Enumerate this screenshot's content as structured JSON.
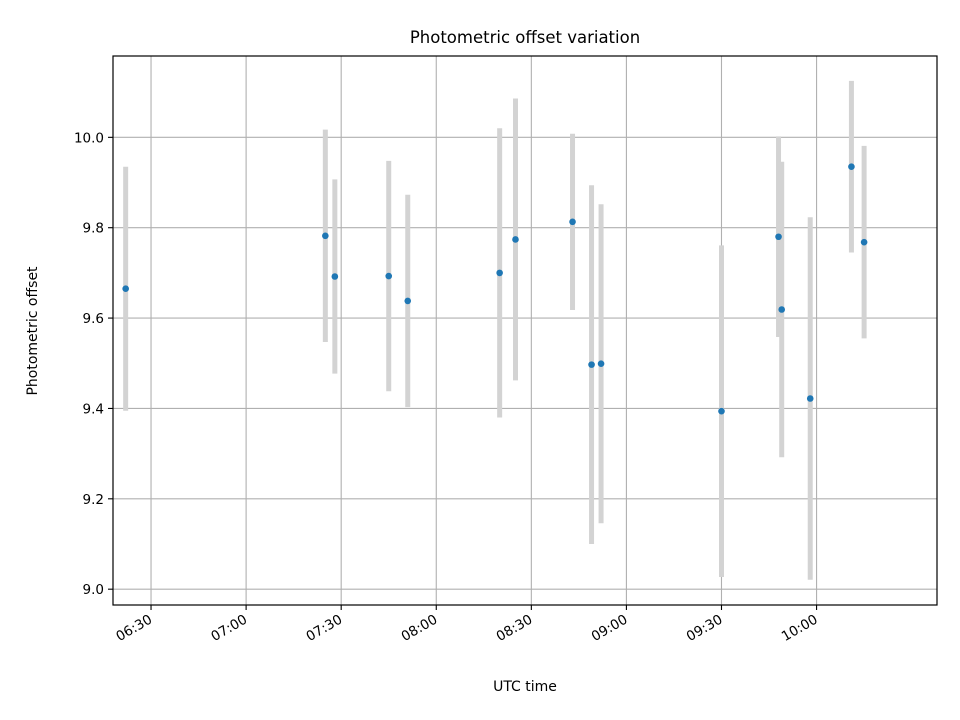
{
  "chart_data": {
    "type": "scatter",
    "title": "Photometric offset variation",
    "xlabel": "UTC time",
    "ylabel": "Photometric offset",
    "x_tick_labels": [
      "06:30",
      "07:00",
      "07:30",
      "08:00",
      "08:30",
      "09:00",
      "09:30",
      "10:00"
    ],
    "y_tick_labels": [
      "9.0",
      "9.2",
      "9.4",
      "9.6",
      "9.8",
      "10.0"
    ],
    "xlim": [
      "06:18",
      "10:38"
    ],
    "ylim": [
      8.965,
      10.18
    ],
    "grid": true,
    "marker_color": "#1f77b4",
    "errorbar_color": "#d3d3d3",
    "points": [
      {
        "x": "06:22",
        "y": 9.665,
        "err": 0.27
      },
      {
        "x": "07:25",
        "y": 9.782,
        "err": 0.235
      },
      {
        "x": "07:28",
        "y": 9.692,
        "err": 0.215
      },
      {
        "x": "07:45",
        "y": 9.693,
        "err": 0.255
      },
      {
        "x": "07:51",
        "y": 9.638,
        "err": 0.235
      },
      {
        "x": "08:20",
        "y": 9.7,
        "err": 0.32
      },
      {
        "x": "08:25",
        "y": 9.774,
        "err": 0.312
      },
      {
        "x": "08:43",
        "y": 9.813,
        "err": 0.195
      },
      {
        "x": "08:49",
        "y": 9.497,
        "err": 0.397
      },
      {
        "x": "08:52",
        "y": 9.499,
        "err": 0.353
      },
      {
        "x": "09:30",
        "y": 9.394,
        "err": 0.367
      },
      {
        "x": "09:48",
        "y": 9.78,
        "err": 0.222
      },
      {
        "x": "09:49",
        "y": 9.619,
        "err": 0.327
      },
      {
        "x": "09:58",
        "y": 9.422,
        "err": 0.401
      },
      {
        "x": "10:11",
        "y": 9.935,
        "err": 0.19
      },
      {
        "x": "10:15",
        "y": 9.768,
        "err": 0.213
      }
    ]
  }
}
